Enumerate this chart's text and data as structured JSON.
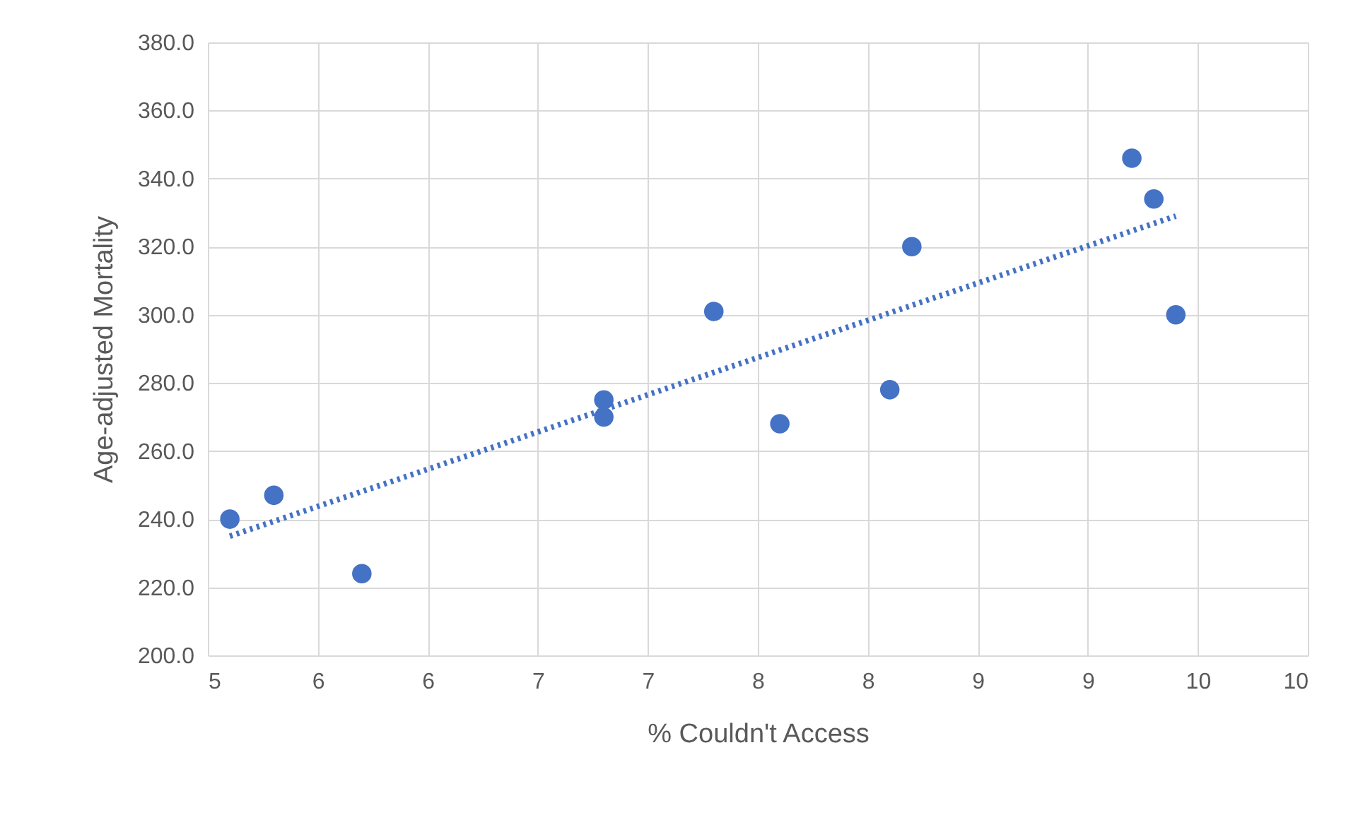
{
  "chart_data": {
    "type": "scatter",
    "xlabel": "% Couldn't Access",
    "ylabel": "Age-adjusted Mortality",
    "xlim": [
      5,
      10
    ],
    "ylim": [
      200,
      380
    ],
    "xticks": [
      5,
      {
        "value": 5.5,
        "label": "6"
      },
      6,
      {
        "value": 6.5,
        "label": "7"
      },
      7,
      {
        "value": 7.5,
        "label": "8"
      },
      8,
      {
        "value": 8.5,
        "label": "9"
      },
      9,
      {
        "value": 9.5,
        "label": "10"
      },
      10
    ],
    "yticks": [
      {
        "value": 200,
        "label": "200.0"
      },
      {
        "value": 220,
        "label": "220.0"
      },
      {
        "value": 240,
        "label": "240.0"
      },
      {
        "value": 260,
        "label": "260.0"
      },
      {
        "value": 280,
        "label": "280.0"
      },
      {
        "value": 300,
        "label": "300.0"
      },
      {
        "value": 320,
        "label": "320.0"
      },
      {
        "value": 340,
        "label": "340.0"
      },
      {
        "value": 360,
        "label": "360.0"
      },
      {
        "value": 380,
        "label": "380.0"
      }
    ],
    "grid": true,
    "series": [
      {
        "color": "#4472c4",
        "marker": "circle",
        "x": [
          5.1,
          5.3,
          5.7,
          6.8,
          6.8,
          7.3,
          7.6,
          8.1,
          8.2,
          9.2,
          9.3,
          9.4
        ],
        "values": [
          240,
          247,
          224,
          275,
          270,
          301,
          268,
          278,
          320,
          346,
          334,
          300
        ]
      },
      {
        "type": "line",
        "color": "#4472c4",
        "line_style": "dotted",
        "x": [
          5.1,
          9.4
        ],
        "values": [
          235,
          329
        ]
      }
    ]
  }
}
